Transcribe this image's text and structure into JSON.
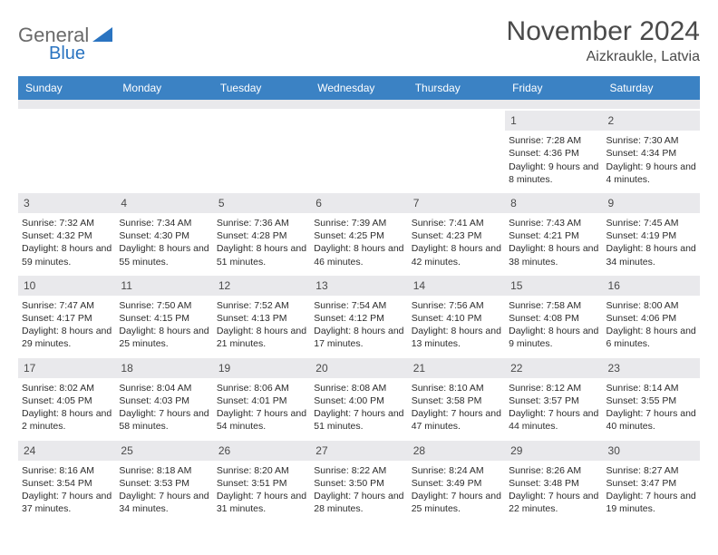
{
  "logo": {
    "text1": "General",
    "text2": "Blue"
  },
  "title": "November 2024",
  "location": "Aizkraukle, Latvia",
  "colors": {
    "header_bg": "#3b82c4",
    "header_fg": "#ffffff",
    "strip_bg": "#e9e9ec",
    "text": "#333333",
    "logo_gray": "#6a6a6a",
    "logo_blue": "#2a74c1"
  },
  "dayNames": [
    "Sunday",
    "Monday",
    "Tuesday",
    "Wednesday",
    "Thursday",
    "Friday",
    "Saturday"
  ],
  "weeks": [
    [
      {
        "date": "",
        "sunrise": "",
        "sunset": "",
        "daylight": ""
      },
      {
        "date": "",
        "sunrise": "",
        "sunset": "",
        "daylight": ""
      },
      {
        "date": "",
        "sunrise": "",
        "sunset": "",
        "daylight": ""
      },
      {
        "date": "",
        "sunrise": "",
        "sunset": "",
        "daylight": ""
      },
      {
        "date": "",
        "sunrise": "",
        "sunset": "",
        "daylight": ""
      },
      {
        "date": "1",
        "sunrise": "Sunrise: 7:28 AM",
        "sunset": "Sunset: 4:36 PM",
        "daylight": "Daylight: 9 hours and 8 minutes."
      },
      {
        "date": "2",
        "sunrise": "Sunrise: 7:30 AM",
        "sunset": "Sunset: 4:34 PM",
        "daylight": "Daylight: 9 hours and 4 minutes."
      }
    ],
    [
      {
        "date": "3",
        "sunrise": "Sunrise: 7:32 AM",
        "sunset": "Sunset: 4:32 PM",
        "daylight": "Daylight: 8 hours and 59 minutes."
      },
      {
        "date": "4",
        "sunrise": "Sunrise: 7:34 AM",
        "sunset": "Sunset: 4:30 PM",
        "daylight": "Daylight: 8 hours and 55 minutes."
      },
      {
        "date": "5",
        "sunrise": "Sunrise: 7:36 AM",
        "sunset": "Sunset: 4:28 PM",
        "daylight": "Daylight: 8 hours and 51 minutes."
      },
      {
        "date": "6",
        "sunrise": "Sunrise: 7:39 AM",
        "sunset": "Sunset: 4:25 PM",
        "daylight": "Daylight: 8 hours and 46 minutes."
      },
      {
        "date": "7",
        "sunrise": "Sunrise: 7:41 AM",
        "sunset": "Sunset: 4:23 PM",
        "daylight": "Daylight: 8 hours and 42 minutes."
      },
      {
        "date": "8",
        "sunrise": "Sunrise: 7:43 AM",
        "sunset": "Sunset: 4:21 PM",
        "daylight": "Daylight: 8 hours and 38 minutes."
      },
      {
        "date": "9",
        "sunrise": "Sunrise: 7:45 AM",
        "sunset": "Sunset: 4:19 PM",
        "daylight": "Daylight: 8 hours and 34 minutes."
      }
    ],
    [
      {
        "date": "10",
        "sunrise": "Sunrise: 7:47 AM",
        "sunset": "Sunset: 4:17 PM",
        "daylight": "Daylight: 8 hours and 29 minutes."
      },
      {
        "date": "11",
        "sunrise": "Sunrise: 7:50 AM",
        "sunset": "Sunset: 4:15 PM",
        "daylight": "Daylight: 8 hours and 25 minutes."
      },
      {
        "date": "12",
        "sunrise": "Sunrise: 7:52 AM",
        "sunset": "Sunset: 4:13 PM",
        "daylight": "Daylight: 8 hours and 21 minutes."
      },
      {
        "date": "13",
        "sunrise": "Sunrise: 7:54 AM",
        "sunset": "Sunset: 4:12 PM",
        "daylight": "Daylight: 8 hours and 17 minutes."
      },
      {
        "date": "14",
        "sunrise": "Sunrise: 7:56 AM",
        "sunset": "Sunset: 4:10 PM",
        "daylight": "Daylight: 8 hours and 13 minutes."
      },
      {
        "date": "15",
        "sunrise": "Sunrise: 7:58 AM",
        "sunset": "Sunset: 4:08 PM",
        "daylight": "Daylight: 8 hours and 9 minutes."
      },
      {
        "date": "16",
        "sunrise": "Sunrise: 8:00 AM",
        "sunset": "Sunset: 4:06 PM",
        "daylight": "Daylight: 8 hours and 6 minutes."
      }
    ],
    [
      {
        "date": "17",
        "sunrise": "Sunrise: 8:02 AM",
        "sunset": "Sunset: 4:05 PM",
        "daylight": "Daylight: 8 hours and 2 minutes."
      },
      {
        "date": "18",
        "sunrise": "Sunrise: 8:04 AM",
        "sunset": "Sunset: 4:03 PM",
        "daylight": "Daylight: 7 hours and 58 minutes."
      },
      {
        "date": "19",
        "sunrise": "Sunrise: 8:06 AM",
        "sunset": "Sunset: 4:01 PM",
        "daylight": "Daylight: 7 hours and 54 minutes."
      },
      {
        "date": "20",
        "sunrise": "Sunrise: 8:08 AM",
        "sunset": "Sunset: 4:00 PM",
        "daylight": "Daylight: 7 hours and 51 minutes."
      },
      {
        "date": "21",
        "sunrise": "Sunrise: 8:10 AM",
        "sunset": "Sunset: 3:58 PM",
        "daylight": "Daylight: 7 hours and 47 minutes."
      },
      {
        "date": "22",
        "sunrise": "Sunrise: 8:12 AM",
        "sunset": "Sunset: 3:57 PM",
        "daylight": "Daylight: 7 hours and 44 minutes."
      },
      {
        "date": "23",
        "sunrise": "Sunrise: 8:14 AM",
        "sunset": "Sunset: 3:55 PM",
        "daylight": "Daylight: 7 hours and 40 minutes."
      }
    ],
    [
      {
        "date": "24",
        "sunrise": "Sunrise: 8:16 AM",
        "sunset": "Sunset: 3:54 PM",
        "daylight": "Daylight: 7 hours and 37 minutes."
      },
      {
        "date": "25",
        "sunrise": "Sunrise: 8:18 AM",
        "sunset": "Sunset: 3:53 PM",
        "daylight": "Daylight: 7 hours and 34 minutes."
      },
      {
        "date": "26",
        "sunrise": "Sunrise: 8:20 AM",
        "sunset": "Sunset: 3:51 PM",
        "daylight": "Daylight: 7 hours and 31 minutes."
      },
      {
        "date": "27",
        "sunrise": "Sunrise: 8:22 AM",
        "sunset": "Sunset: 3:50 PM",
        "daylight": "Daylight: 7 hours and 28 minutes."
      },
      {
        "date": "28",
        "sunrise": "Sunrise: 8:24 AM",
        "sunset": "Sunset: 3:49 PM",
        "daylight": "Daylight: 7 hours and 25 minutes."
      },
      {
        "date": "29",
        "sunrise": "Sunrise: 8:26 AM",
        "sunset": "Sunset: 3:48 PM",
        "daylight": "Daylight: 7 hours and 22 minutes."
      },
      {
        "date": "30",
        "sunrise": "Sunrise: 8:27 AM",
        "sunset": "Sunset: 3:47 PM",
        "daylight": "Daylight: 7 hours and 19 minutes."
      }
    ]
  ]
}
